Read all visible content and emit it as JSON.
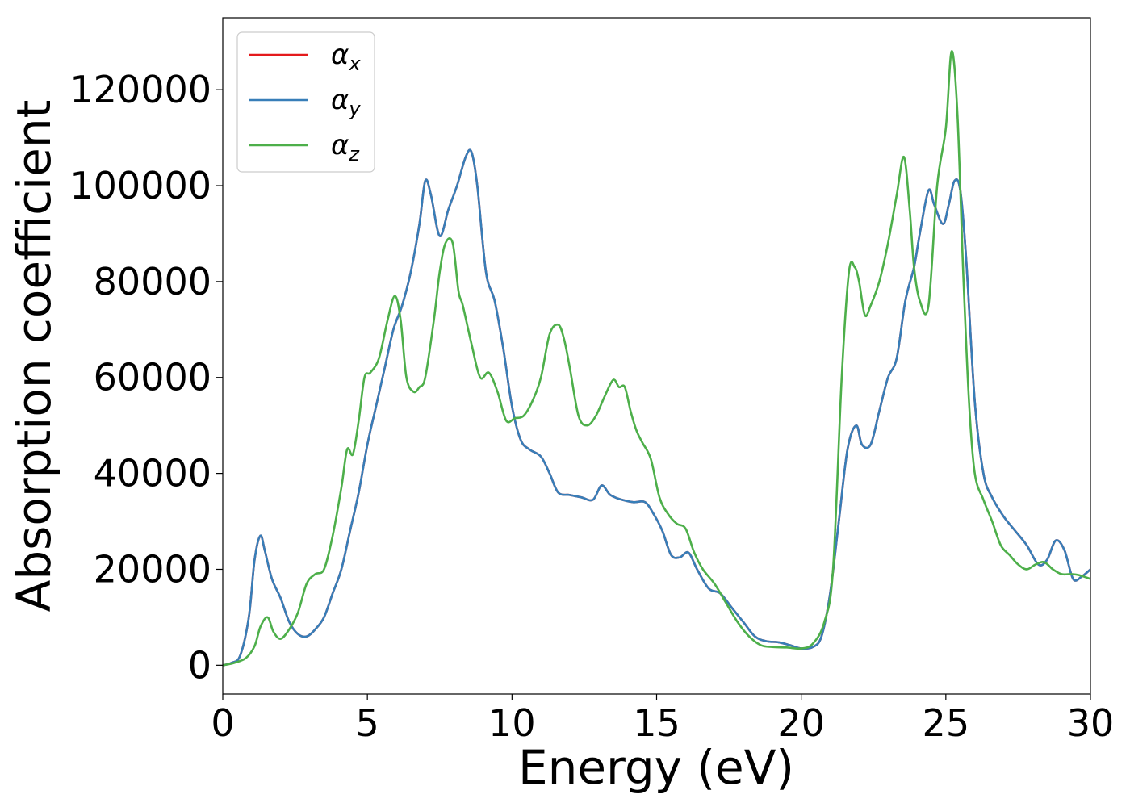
{
  "chart_data": {
    "type": "line",
    "xlabel": "Energy (eV)",
    "ylabel": "Absorption coefficient",
    "xlim": [
      0,
      30
    ],
    "ylim": [
      -6000,
      135000
    ],
    "xticks": [
      0,
      5,
      10,
      15,
      20,
      25,
      30
    ],
    "yticks": [
      0,
      20000,
      40000,
      60000,
      80000,
      100000,
      120000
    ],
    "xtick_labels": [
      "0",
      "5",
      "10",
      "15",
      "20",
      "25",
      "30"
    ],
    "ytick_labels": [
      "0",
      "20000",
      "40000",
      "60000",
      "80000",
      "100000",
      "120000"
    ],
    "grid": false,
    "legend_position": "top-left",
    "series": [
      {
        "name": "α_x",
        "label_main": "α",
        "label_sub": "x",
        "color": "#e41a1c",
        "x": [
          0,
          0.3,
          0.6,
          0.9,
          1.1,
          1.3,
          1.45,
          1.7,
          2.0,
          2.3,
          2.6,
          2.9,
          3.2,
          3.5,
          3.8,
          4.1,
          4.4,
          4.7,
          5.0,
          5.3,
          5.6,
          5.9,
          6.2,
          6.5,
          6.8,
          7.0,
          7.2,
          7.5,
          7.8,
          8.1,
          8.4,
          8.6,
          8.8,
          9.1,
          9.4,
          9.7,
          10.0,
          10.3,
          10.6,
          11.0,
          11.3,
          11.6,
          12.0,
          12.4,
          12.8,
          13.1,
          13.4,
          13.8,
          14.2,
          14.6,
          14.9,
          15.2,
          15.5,
          15.8,
          16.1,
          16.4,
          16.8,
          17.2,
          17.6,
          18.0,
          18.4,
          18.8,
          19.2,
          19.6,
          20.0,
          20.4,
          20.7,
          21.0,
          21.3,
          21.6,
          21.9,
          22.1,
          22.4,
          22.7,
          23.0,
          23.3,
          23.6,
          23.9,
          24.1,
          24.4,
          24.6,
          24.9,
          25.1,
          25.3,
          25.5,
          25.7,
          26.0,
          26.3,
          26.6,
          27.0,
          27.4,
          27.8,
          28.2,
          28.5,
          28.8,
          29.1,
          29.4,
          29.7,
          30.0
        ],
        "y": [
          0,
          500,
          2000,
          10000,
          22000,
          27000,
          24000,
          18000,
          14000,
          9000,
          6500,
          6000,
          7500,
          10000,
          15000,
          20000,
          28000,
          36000,
          46000,
          54000,
          62000,
          70000,
          75000,
          82000,
          92000,
          101000,
          98000,
          89500,
          95000,
          100000,
          106000,
          107000,
          100000,
          82000,
          76000,
          66000,
          54000,
          47000,
          45000,
          43500,
          40000,
          36000,
          35500,
          35000,
          34500,
          37500,
          35500,
          34500,
          34000,
          34000,
          31500,
          28000,
          23000,
          22500,
          23500,
          20000,
          16000,
          15000,
          12000,
          9000,
          6000,
          5000,
          4800,
          4200,
          3500,
          3800,
          6000,
          15000,
          30000,
          45000,
          50000,
          46000,
          46000,
          53000,
          60000,
          64000,
          76000,
          83000,
          90000,
          99000,
          96000,
          92000,
          96000,
          101000,
          99000,
          85000,
          55000,
          40000,
          35000,
          31000,
          28000,
          25000,
          21000,
          22000,
          26000,
          24000,
          18000,
          18500,
          20000
        ]
      },
      {
        "name": "α_y",
        "label_main": "α",
        "label_sub": "y",
        "color": "#377eb8",
        "x": [
          0,
          0.3,
          0.6,
          0.9,
          1.1,
          1.3,
          1.45,
          1.7,
          2.0,
          2.3,
          2.6,
          2.9,
          3.2,
          3.5,
          3.8,
          4.1,
          4.4,
          4.7,
          5.0,
          5.3,
          5.6,
          5.9,
          6.2,
          6.5,
          6.8,
          7.0,
          7.2,
          7.5,
          7.8,
          8.1,
          8.4,
          8.6,
          8.8,
          9.1,
          9.4,
          9.7,
          10.0,
          10.3,
          10.6,
          11.0,
          11.3,
          11.6,
          12.0,
          12.4,
          12.8,
          13.1,
          13.4,
          13.8,
          14.2,
          14.6,
          14.9,
          15.2,
          15.5,
          15.8,
          16.1,
          16.4,
          16.8,
          17.2,
          17.6,
          18.0,
          18.4,
          18.8,
          19.2,
          19.6,
          20.0,
          20.4,
          20.7,
          21.0,
          21.3,
          21.6,
          21.9,
          22.1,
          22.4,
          22.7,
          23.0,
          23.3,
          23.6,
          23.9,
          24.1,
          24.4,
          24.6,
          24.9,
          25.1,
          25.3,
          25.5,
          25.7,
          26.0,
          26.3,
          26.6,
          27.0,
          27.4,
          27.8,
          28.2,
          28.5,
          28.8,
          29.1,
          29.4,
          29.7,
          30.0
        ],
        "y": [
          0,
          500,
          2000,
          10000,
          22000,
          27000,
          24000,
          18000,
          14000,
          9000,
          6500,
          6000,
          7500,
          10000,
          15000,
          20000,
          28000,
          36000,
          46000,
          54000,
          62000,
          70000,
          75000,
          82000,
          92000,
          101000,
          98000,
          89500,
          95000,
          100000,
          106000,
          107000,
          100000,
          82000,
          76000,
          66000,
          54000,
          47000,
          45000,
          43500,
          40000,
          36000,
          35500,
          35000,
          34500,
          37500,
          35500,
          34500,
          34000,
          34000,
          31500,
          28000,
          23000,
          22500,
          23500,
          20000,
          16000,
          15000,
          12000,
          9000,
          6000,
          5000,
          4800,
          4200,
          3500,
          3800,
          6000,
          15000,
          30000,
          45000,
          50000,
          46000,
          46000,
          53000,
          60000,
          64000,
          76000,
          83000,
          90000,
          99000,
          96000,
          92000,
          96000,
          101000,
          99000,
          85000,
          55000,
          40000,
          35000,
          31000,
          28000,
          25000,
          21000,
          22000,
          26000,
          24000,
          18000,
          18500,
          20000
        ]
      },
      {
        "name": "α_z",
        "label_main": "α",
        "label_sub": "z",
        "color": "#4daf4a",
        "x": [
          0,
          0.4,
          0.8,
          1.1,
          1.3,
          1.55,
          1.75,
          2.0,
          2.3,
          2.6,
          2.9,
          3.2,
          3.5,
          3.8,
          4.1,
          4.3,
          4.5,
          4.7,
          4.9,
          5.1,
          5.4,
          5.7,
          5.95,
          6.15,
          6.35,
          6.6,
          6.8,
          7.0,
          7.3,
          7.5,
          7.7,
          7.95,
          8.15,
          8.3,
          8.6,
          8.9,
          9.2,
          9.5,
          9.8,
          10.1,
          10.4,
          10.7,
          11.0,
          11.3,
          11.6,
          11.8,
          12.0,
          12.3,
          12.6,
          12.9,
          13.2,
          13.5,
          13.7,
          13.9,
          14.1,
          14.3,
          14.5,
          14.8,
          15.1,
          15.4,
          15.7,
          16.0,
          16.3,
          16.6,
          17.0,
          17.4,
          17.8,
          18.2,
          18.6,
          19.0,
          19.5,
          20.0,
          20.4,
          20.8,
          21.1,
          21.4,
          21.65,
          21.85,
          22.0,
          22.2,
          22.4,
          22.7,
          23.0,
          23.3,
          23.55,
          23.75,
          23.9,
          24.1,
          24.4,
          24.7,
          25.0,
          25.2,
          25.4,
          25.6,
          25.8,
          26.0,
          26.3,
          26.6,
          26.9,
          27.2,
          27.5,
          27.8,
          28.1,
          28.4,
          28.7,
          29.0,
          29.3,
          29.6,
          30.0
        ],
        "y": [
          0,
          500,
          1500,
          4000,
          8000,
          10000,
          7000,
          5500,
          7500,
          11000,
          17000,
          19000,
          20000,
          27000,
          37000,
          45000,
          44000,
          51000,
          60000,
          61000,
          64000,
          72000,
          77000,
          72000,
          60000,
          57000,
          58000,
          60000,
          72000,
          82000,
          88000,
          88000,
          78000,
          75000,
          67000,
          60000,
          61000,
          57000,
          51000,
          51500,
          52000,
          55000,
          60000,
          69000,
          71000,
          68000,
          62000,
          52000,
          50000,
          52000,
          56000,
          59500,
          58000,
          58000,
          53000,
          49000,
          46500,
          43000,
          35000,
          31500,
          29500,
          28500,
          23500,
          20000,
          17000,
          13000,
          9000,
          6000,
          4200,
          3800,
          3700,
          3500,
          4500,
          9000,
          20000,
          60000,
          82000,
          83000,
          80000,
          73000,
          75000,
          80000,
          88000,
          98000,
          106000,
          95000,
          83000,
          76000,
          75000,
          100000,
          112000,
          128000,
          115000,
          82000,
          55000,
          40000,
          34500,
          30000,
          25000,
          23000,
          21000,
          20000,
          21000,
          21500,
          20000,
          19000,
          19000,
          18800,
          18000
        ]
      }
    ]
  }
}
